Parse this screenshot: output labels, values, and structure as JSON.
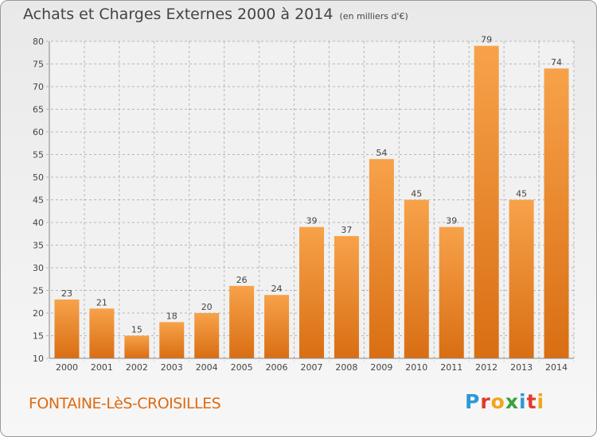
{
  "header": {
    "title": "Achats et Charges Externes 2000 à 2014",
    "subtitle": "(en milliers d'€)"
  },
  "footer": {
    "town": "FONTAINE-LèS-CROISILLES",
    "logo": [
      "P",
      "r",
      "o",
      "x",
      "i",
      "t",
      "i"
    ],
    "logo_colors": [
      "#2a9ad6",
      "#e23a2a",
      "#f2a516",
      "#3aa13a",
      "#2a9ad6",
      "#e23a2a",
      "#f2a516"
    ]
  },
  "colors": {
    "bar_top": "#f7a24a",
    "bar_bottom": "#d96e13",
    "grid": "#b7b7b7",
    "text": "#444444"
  },
  "chart_data": {
    "type": "bar",
    "title": "Achats et Charges Externes 2000 à 2014",
    "subtitle": "(en milliers d'€)",
    "categories": [
      "2000",
      "2001",
      "2002",
      "2003",
      "2004",
      "2005",
      "2006",
      "2007",
      "2008",
      "2009",
      "2010",
      "2011",
      "2012",
      "2013",
      "2014"
    ],
    "values": [
      23,
      21,
      15,
      18,
      20,
      26,
      24,
      39,
      37,
      54,
      45,
      39,
      79,
      45,
      74
    ],
    "ylim": [
      10,
      80
    ],
    "yticks": [
      10,
      15,
      20,
      25,
      30,
      35,
      40,
      45,
      50,
      55,
      60,
      65,
      70,
      75,
      80
    ],
    "grid": true
  }
}
